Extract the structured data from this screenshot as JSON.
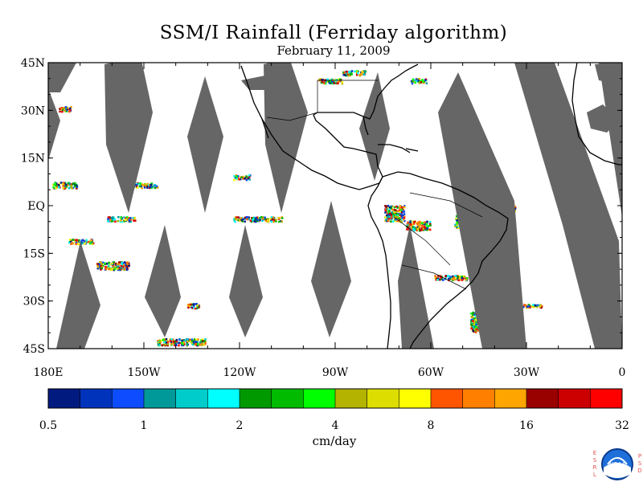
{
  "title": "SSM/I Rainfall (Ferriday algorithm)",
  "date": "February 11, 2009",
  "map": {
    "lat_labels": [
      "45N",
      "30N",
      "15N",
      "EQ",
      "15S",
      "30S",
      "45S"
    ],
    "lat_values": [
      45,
      30,
      15,
      0,
      -15,
      -30,
      -45
    ],
    "lon_labels": [
      "180E",
      "150W",
      "120W",
      "90W",
      "60W",
      "30W",
      "0"
    ],
    "lon_values": [
      -180,
      -150,
      -120,
      -90,
      -60,
      -30,
      0
    ],
    "lon_range": [
      -180,
      0
    ],
    "lat_range": [
      -45,
      45
    ],
    "no_data_color": "#666666",
    "land_outline_color": "#000000"
  },
  "colorbar": {
    "colors": [
      "#001a80",
      "#0033bb",
      "#0d4dff",
      "#009999",
      "#00cccc",
      "#00ffff",
      "#009900",
      "#00bb00",
      "#00ff00",
      "#b3b300",
      "#dddd00",
      "#ffff00",
      "#ff5500",
      "#ff8000",
      "#ffa500",
      "#990000",
      "#cc0000",
      "#ff0000"
    ],
    "tick_labels": [
      "0.5",
      "1",
      "2",
      "4",
      "8",
      "16",
      "32"
    ],
    "units": "cm/day"
  },
  "logo": {
    "left_letters": [
      "E",
      "S",
      "R",
      "L"
    ],
    "right_letters": [
      "P",
      "S",
      "D"
    ],
    "center_text": "NOAA"
  }
}
